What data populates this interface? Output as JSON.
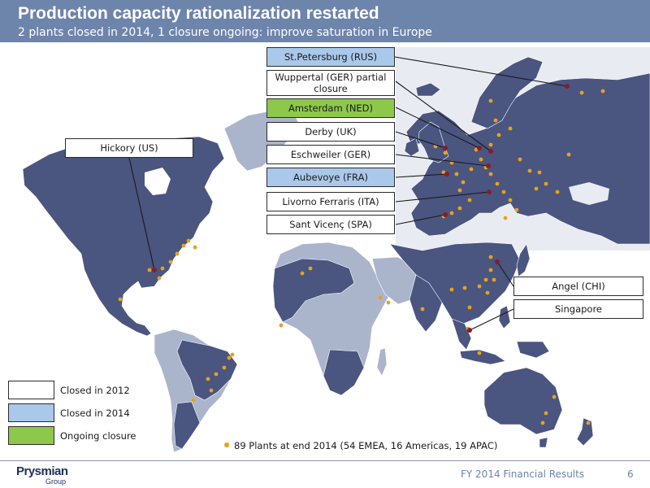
{
  "slide": {
    "title": "Production capacity rationalization restarted",
    "subtitle": "2 plants closed in 2014, 1 closure ongoing: improve saturation in Europe"
  },
  "colors": {
    "header": "#6d84ab",
    "land": "#4a5580",
    "land_light": "#aab5cc",
    "plant_dot": "#e7a21c",
    "closure_marker": "#8b1a2b",
    "closed_2012": "#ffffff",
    "closed_2014": "#a9c8ea",
    "ongoing_closure": "#8dc84b"
  },
  "plant_labels": [
    {
      "name": "St.Petersburg (RUS)",
      "status": "closed_2014"
    },
    {
      "name": "Wuppertal (GER) partial closure",
      "status": "closed_2012"
    },
    {
      "name": "Amsterdam (NED)",
      "status": "ongoing_closure"
    },
    {
      "name": "Derby (UK)",
      "status": "closed_2012"
    },
    {
      "name": "Eschweiler (GER)",
      "status": "closed_2012"
    },
    {
      "name": "Aubevoye (FRA)",
      "status": "closed_2014"
    },
    {
      "name": "Livorno Ferraris (ITA)",
      "status": "closed_2012"
    },
    {
      "name": "Sant Vicenç (SPA)",
      "status": "closed_2012"
    },
    {
      "name": "Hickory (US)",
      "status": "closed_2012"
    },
    {
      "name": "Angel (CHI)",
      "status": "closed_2012"
    },
    {
      "name": "Singapore",
      "status": "closed_2012"
    }
  ],
  "legend": {
    "closed_2012": "Closed in 2012",
    "closed_2014": "Closed in 2014",
    "ongoing": "Ongoing closure"
  },
  "plants_note": "89 Plants at end 2014 (54 EMEA, 16 Americas, 19 APAC)",
  "footer": {
    "logo": "Prysmian",
    "logo_sub": "Group",
    "text": "FY 2014 Financial Results",
    "page": "6"
  }
}
